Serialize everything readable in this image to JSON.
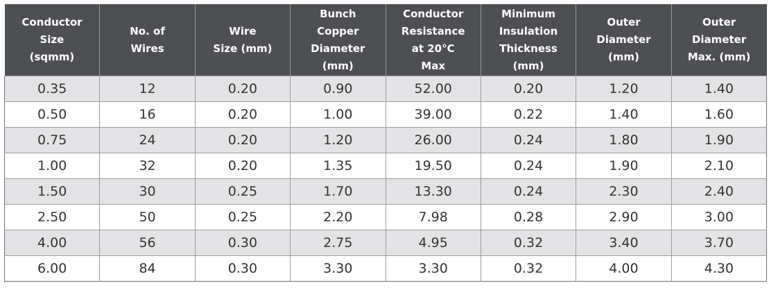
{
  "table": {
    "headers": [
      "Conductor\nSize\n(sqmm)",
      "No. of\nWires",
      "Wire\nSize (mm)",
      "Bunch\nCopper\nDiameter\n(mm)",
      "Conductor\nResistance\nat 20°C\nMax",
      "Minimum\nInsulation\nThickness\n(mm)",
      "Outer\nDiameter\n(mm)",
      "Outer\nDiameter\nMax. (mm)"
    ],
    "rows": [
      [
        "0.35",
        "12",
        "0.20",
        "0.90",
        "52.00",
        "0.20",
        "1.20",
        "1.40"
      ],
      [
        "0.50",
        "16",
        "0.20",
        "1.00",
        "39.00",
        "0.22",
        "1.40",
        "1.60"
      ],
      [
        "0.75",
        "24",
        "0.20",
        "1.20",
        "26.00",
        "0.24",
        "1.80",
        "1.90"
      ],
      [
        "1.00",
        "32",
        "0.20",
        "1.35",
        "19.50",
        "0.24",
        "1.90",
        "2.10"
      ],
      [
        "1.50",
        "30",
        "0.25",
        "1.70",
        "13.30",
        "0.24",
        "2.30",
        "2.40"
      ],
      [
        "2.50",
        "50",
        "0.25",
        "2.20",
        "7.98",
        "0.28",
        "2.90",
        "3.00"
      ],
      [
        "4.00",
        "56",
        "0.30",
        "2.75",
        "4.95",
        "0.32",
        "3.40",
        "3.70"
      ],
      [
        "6.00",
        "84",
        "0.30",
        "3.30",
        "3.30",
        "0.32",
        "4.00",
        "4.30"
      ]
    ]
  },
  "colors": {
    "header_bg": "#4d4f53",
    "header_text": "#ffffff",
    "stripe_row_bg": "#e3e3e5",
    "plain_row_bg": "#ffffff",
    "cell_text": "#333333"
  }
}
